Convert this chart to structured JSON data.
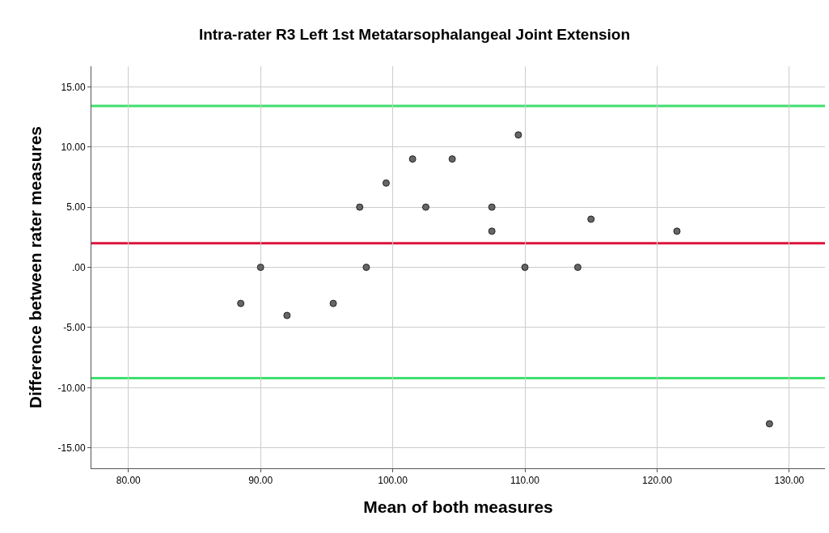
{
  "chart_data": {
    "type": "scatter",
    "title": "Intra-rater R3 Left 1st Metatarsophalangeal Joint Extension",
    "xlabel": "Mean of both measures",
    "ylabel": "Difference between rater measures",
    "x": [
      88.5,
      90,
      92,
      95.5,
      97.5,
      98,
      99.5,
      101.5,
      102.5,
      104.5,
      107.5,
      107.5,
      109.5,
      110,
      114,
      115,
      121.5,
      128.5
    ],
    "series": [
      {
        "color": "#666666",
        "values": [
          -3,
          0,
          -4,
          -3,
          5,
          0,
          7,
          9,
          5,
          9,
          5,
          3,
          11,
          0,
          0,
          4,
          3,
          -13
        ]
      }
    ],
    "xlim": [
      77.2,
      132.7
    ],
    "ylim": [
      -16.7,
      16.7
    ],
    "xticks": [
      {
        "value": 80,
        "label": "80.00"
      },
      {
        "value": 90,
        "label": "90.00"
      },
      {
        "value": 100,
        "label": "100.00"
      },
      {
        "value": 110,
        "label": "110.00"
      },
      {
        "value": 120,
        "label": "120.00"
      },
      {
        "value": 130,
        "label": "130.00"
      }
    ],
    "yticks": [
      {
        "value": -15,
        "label": "-15.00"
      },
      {
        "value": -10,
        "label": "-10.00"
      },
      {
        "value": -5,
        "label": "-5.00"
      },
      {
        "value": 0,
        "label": ".00"
      },
      {
        "value": 5,
        "label": "5.00"
      },
      {
        "value": 10,
        "label": "10.00"
      },
      {
        "value": 15,
        "label": "15.00"
      }
    ],
    "ref_lines": [
      {
        "axis": "y",
        "value": 13.4,
        "color": "#3ee06e"
      },
      {
        "axis": "y",
        "value": 2.0,
        "color": "#dc143c"
      },
      {
        "axis": "y",
        "value": -9.2,
        "color": "#3ee06e"
      }
    ],
    "grid": true,
    "marker": "circle"
  }
}
